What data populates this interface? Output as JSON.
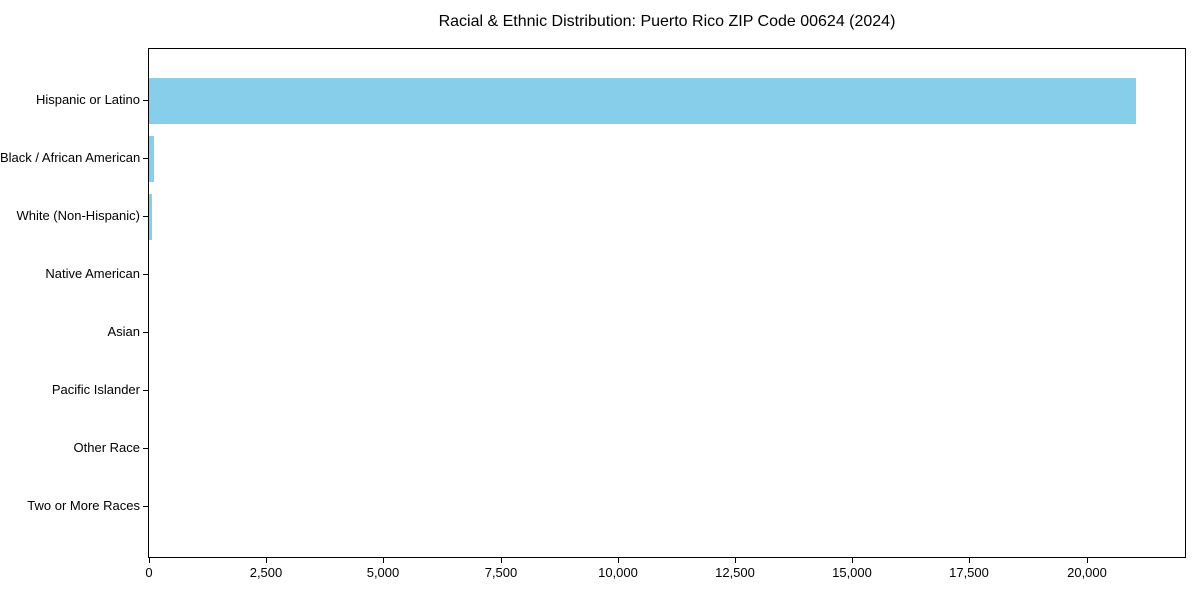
{
  "chart_data": {
    "type": "bar",
    "orientation": "horizontal",
    "title": "Racial & Ethnic Distribution: Puerto Rico ZIP Code 00624 (2024)",
    "categories": [
      "Hispanic or Latino",
      "Black / African American",
      "White (Non-Hispanic)",
      "Native American",
      "Asian",
      "Pacific Islander",
      "Other Race",
      "Two or More Races"
    ],
    "values": [
      21050,
      105,
      55,
      0,
      0,
      0,
      0,
      0
    ],
    "xlabel": "",
    "ylabel": "",
    "xlim": [
      0,
      22100
    ],
    "xticks": [
      0,
      2500,
      5000,
      7500,
      10000,
      12500,
      15000,
      17500,
      20000
    ],
    "xtick_labels": [
      "0",
      "2,500",
      "5,000",
      "7,500",
      "10,000",
      "12,500",
      "15,000",
      "17,500",
      "20,000"
    ],
    "grid": false,
    "legend_position": "none",
    "bar_color": "#87CEEB",
    "axis_color": "#000000",
    "background_color": "#ffffff"
  }
}
